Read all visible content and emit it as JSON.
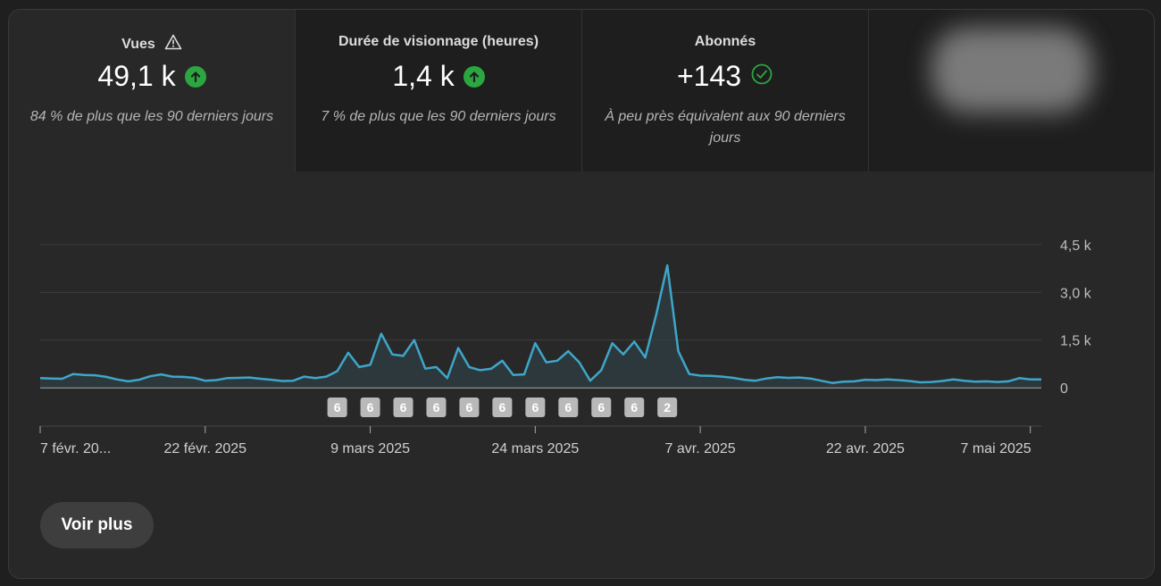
{
  "metrics": [
    {
      "title": "Vues",
      "value": "49,1 k",
      "description": "84 % de plus que les 90 derniers jours",
      "title_icon": "warning-icon",
      "value_icon": "arrow-up-circle-icon"
    },
    {
      "title": "Durée de visionnage (heures)",
      "value": "1,4 k",
      "description": "7 % de plus que les 90 derniers jours",
      "value_icon": "arrow-up-circle-icon"
    },
    {
      "title": "Abonnés",
      "value": "+143",
      "description": "À peu près équivalent aux 90 derniers jours",
      "value_icon": "check-circle-icon"
    }
  ],
  "colors": {
    "line": "#3ea6c9",
    "up": "#2ba640",
    "check": "#2ba640",
    "grid": "#3c3c3c",
    "marker": "#b9b9b9"
  },
  "chart_data": {
    "type": "area",
    "series": [
      {
        "values": [
          300,
          290,
          280,
          430,
          400,
          390,
          340,
          260,
          200,
          250,
          360,
          420,
          350,
          340,
          310,
          220,
          240,
          300,
          310,
          320,
          280,
          250,
          210,
          220,
          350,
          300,
          350,
          520,
          1100,
          650,
          720,
          1700,
          1050,
          1000,
          1500,
          600,
          650,
          300,
          1250,
          650,
          550,
          600,
          850,
          400,
          420,
          1400,
          800,
          850,
          1150,
          800,
          220,
          550,
          1400,
          1050,
          1450,
          950,
          2300,
          3850,
          1150,
          430,
          380,
          370,
          350,
          310,
          250,
          220,
          290,
          330,
          310,
          320,
          290,
          220,
          150,
          190,
          200,
          250,
          240,
          260,
          240,
          210,
          170,
          180,
          210,
          260,
          220,
          190,
          200,
          180,
          200,
          300,
          260,
          260
        ]
      }
    ],
    "x_tick_labels": [
      "7 févr. 20...",
      "22 févr. 2025",
      "9 mars 2025",
      "24 mars 2025",
      "7 avr. 2025",
      "22 avr. 2025",
      "7 mai 2025"
    ],
    "x_tick_index": [
      0,
      15,
      30,
      45,
      60,
      75,
      90
    ],
    "y_tick_labels": [
      "4,5 k",
      "3,0 k",
      "1,5 k",
      "0"
    ],
    "y_tick_values": [
      4500,
      3000,
      1500,
      0
    ],
    "ylim": [
      0,
      4500
    ],
    "grid": true,
    "markers": [
      {
        "label": "6",
        "index": 27
      },
      {
        "label": "6",
        "index": 30
      },
      {
        "label": "6",
        "index": 33
      },
      {
        "label": "6",
        "index": 36
      },
      {
        "label": "6",
        "index": 39
      },
      {
        "label": "6",
        "index": 42
      },
      {
        "label": "6",
        "index": 45
      },
      {
        "label": "6",
        "index": 48
      },
      {
        "label": "6",
        "index": 51
      },
      {
        "label": "6",
        "index": 54
      },
      {
        "label": "2",
        "index": 57
      }
    ]
  },
  "more_button": {
    "label": "Voir plus"
  }
}
